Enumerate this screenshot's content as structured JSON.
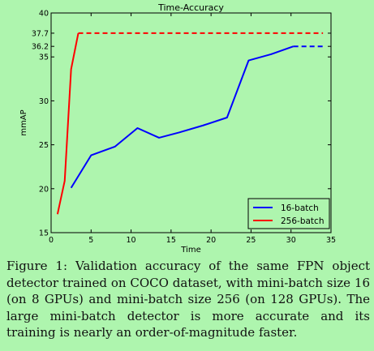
{
  "figure": {
    "caption": "Figure 1: Validation accuracy of the same FPN object detector trained on COCO dataset, with mini-batch size 16 (on 8 GPUs) and mini-batch size 256 (on 128 GPUs). The large mini-batch detector is more accurate and its training is nearly an order-of-magnitude faster."
  },
  "chart_data": {
    "type": "line",
    "title": "Time-Accuracy",
    "xlabel": "Time",
    "ylabel": "mmAP",
    "xlim": [
      0,
      35
    ],
    "ylim": [
      15,
      40
    ],
    "x_ticks": [
      0,
      5,
      10,
      15,
      20,
      25,
      30,
      35
    ],
    "y_ticks": [
      15,
      20,
      25,
      30,
      35,
      36.2,
      37.7,
      40
    ],
    "y_tick_labels": [
      "15",
      "20",
      "25",
      "30",
      "35",
      "36.2",
      "37.7",
      "40"
    ],
    "grid": false,
    "legend_position": "bottom-right",
    "background": "#aef5ae",
    "series": [
      {
        "name": "16-batch",
        "color": "#0000ff",
        "x": [
          2.5,
          5.0,
          8.0,
          10.8,
          13.5,
          16.0,
          19.0,
          22.0,
          24.7,
          27.5,
          30.3
        ],
        "y": [
          20.1,
          23.8,
          24.8,
          26.9,
          25.8,
          26.4,
          27.2,
          28.1,
          34.6,
          35.3,
          36.2
        ],
        "dashed_extension": {
          "x": [
            30.3,
            34.0
          ],
          "y": [
            36.2,
            36.2
          ]
        }
      },
      {
        "name": "256-batch",
        "color": "#ff0000",
        "x": [
          0.8,
          1.7,
          2.5,
          3.4
        ],
        "y": [
          17.1,
          20.9,
          33.6,
          37.7
        ],
        "dashed_extension": {
          "x": [
            3.4,
            34.0
          ],
          "y": [
            37.7,
            37.7
          ]
        }
      }
    ]
  }
}
